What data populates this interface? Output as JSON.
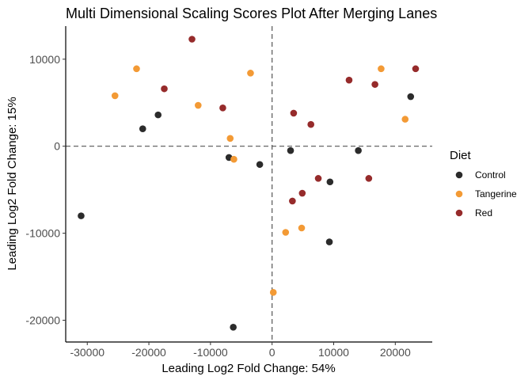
{
  "chart_data": {
    "type": "scatter",
    "title": "Multi Dimensional Scaling Scores Plot After Merging Lanes",
    "xlabel": "Leading Log2 Fold Change: 54%",
    "ylabel": "Leading Log2 Fold Change: 15%",
    "xlim": [
      -33500,
      26000
    ],
    "ylim": [
      -22500,
      13800
    ],
    "xticks": [
      -30000,
      -20000,
      -10000,
      0,
      10000,
      20000
    ],
    "xtick_labels": [
      "-30000",
      "-20000",
      "-10000",
      "0",
      "10000",
      "20000"
    ],
    "yticks": [
      -20000,
      -10000,
      0,
      10000
    ],
    "ytick_labels": [
      "-20000",
      "-10000",
      "0",
      "10000"
    ],
    "reference_lines": {
      "x": 0,
      "y": 0,
      "style": "dashed"
    },
    "grid": false,
    "legend": {
      "title": "Diet",
      "position": "right"
    },
    "series": [
      {
        "name": "Control",
        "color": "#2b2b2b",
        "points": [
          [
            -31000,
            -8000
          ],
          [
            -21000,
            2000
          ],
          [
            -18500,
            3600
          ],
          [
            -7000,
            -1300
          ],
          [
            -6300,
            -20800
          ],
          [
            -2000,
            -2100
          ],
          [
            3000,
            -500
          ],
          [
            9400,
            -4100
          ],
          [
            9300,
            -11000
          ],
          [
            14000,
            -500
          ],
          [
            22500,
            5700
          ]
        ]
      },
      {
        "name": "Tangerine",
        "color": "#f39a35",
        "points": [
          [
            -25500,
            5800
          ],
          [
            -22000,
            8900
          ],
          [
            -12000,
            4700
          ],
          [
            -6800,
            900
          ],
          [
            -6200,
            -1500
          ],
          [
            -3500,
            8400
          ],
          [
            200,
            -16800
          ],
          [
            2200,
            -9900
          ],
          [
            4800,
            -9400
          ],
          [
            17700,
            8900
          ],
          [
            21600,
            3100
          ]
        ]
      },
      {
        "name": "Red",
        "color": "#962b2b",
        "points": [
          [
            -13000,
            12300
          ],
          [
            -17500,
            6600
          ],
          [
            -8000,
            4400
          ],
          [
            3500,
            3800
          ],
          [
            6300,
            2500
          ],
          [
            3300,
            -6300
          ],
          [
            4900,
            -5400
          ],
          [
            7500,
            -3700
          ],
          [
            12500,
            7600
          ],
          [
            16700,
            7100
          ],
          [
            23300,
            8900
          ],
          [
            15700,
            -3700
          ]
        ]
      }
    ]
  }
}
